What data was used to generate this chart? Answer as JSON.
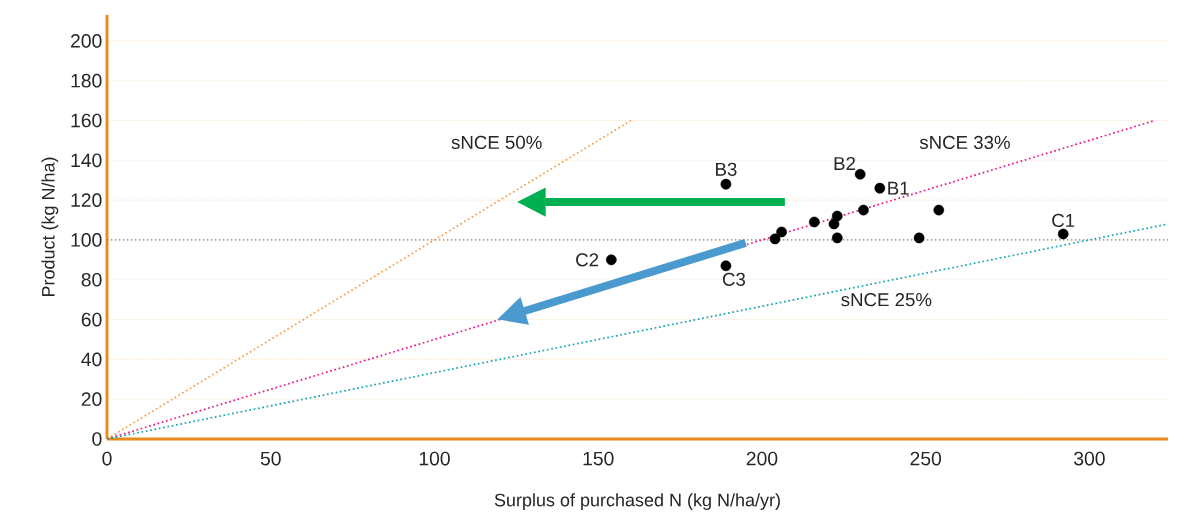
{
  "chart_data": {
    "type": "scatter",
    "xlabel": "Surplus of purchased N (kg N/ha/yr)",
    "ylabel": "Product (kg N/ha)",
    "xlim": [
      0,
      324
    ],
    "ylim": [
      0,
      213
    ],
    "xticks": [
      0,
      50,
      100,
      150,
      200,
      250,
      300
    ],
    "yticks": [
      0,
      20,
      40,
      60,
      80,
      100,
      120,
      140,
      160,
      180,
      200
    ],
    "grid": "y",
    "marker": "circle",
    "series": [
      {
        "color": "#000000",
        "x": [
          189,
          230,
          236,
          231,
          254,
          223,
          216,
          222,
          206,
          204,
          223,
          248,
          154,
          189,
          292
        ],
        "values": [
          128,
          133,
          126,
          115,
          115,
          112,
          109,
          108,
          104,
          100.5,
          101,
          101,
          90,
          87,
          103
        ]
      },
      {
        "type": "line",
        "name": "sNCE 50%",
        "color": "#f5a04a",
        "line_style": "dotted",
        "marker": "none",
        "x": [
          0,
          160
        ],
        "values": [
          0,
          160
        ]
      },
      {
        "type": "line",
        "name": "sNCE 33%",
        "color": "#ec1c8c",
        "line_style": "dotted",
        "marker": "none",
        "x": [
          0,
          320
        ],
        "values": [
          0,
          160
        ]
      },
      {
        "type": "line",
        "name": "sNCE 25%",
        "color": "#1aa5b3",
        "line_style": "dotted",
        "marker": "none",
        "x": [
          0,
          324
        ],
        "values": [
          0,
          108
        ]
      }
    ],
    "ref_lines": [
      {
        "axis": "y",
        "value": 100,
        "color": "#808080",
        "line_style": "dotted"
      }
    ],
    "annotations": [
      {
        "text": "B3",
        "x": 189,
        "y": 128
      },
      {
        "text": "B2",
        "x": 230,
        "y": 133
      },
      {
        "text": "B1",
        "x": 236,
        "y": 126
      },
      {
        "text": "C1",
        "x": 292,
        "y": 103
      },
      {
        "text": "C2",
        "x": 154,
        "y": 90
      },
      {
        "text": "C3",
        "x": 189,
        "y": 87
      }
    ]
  }
}
